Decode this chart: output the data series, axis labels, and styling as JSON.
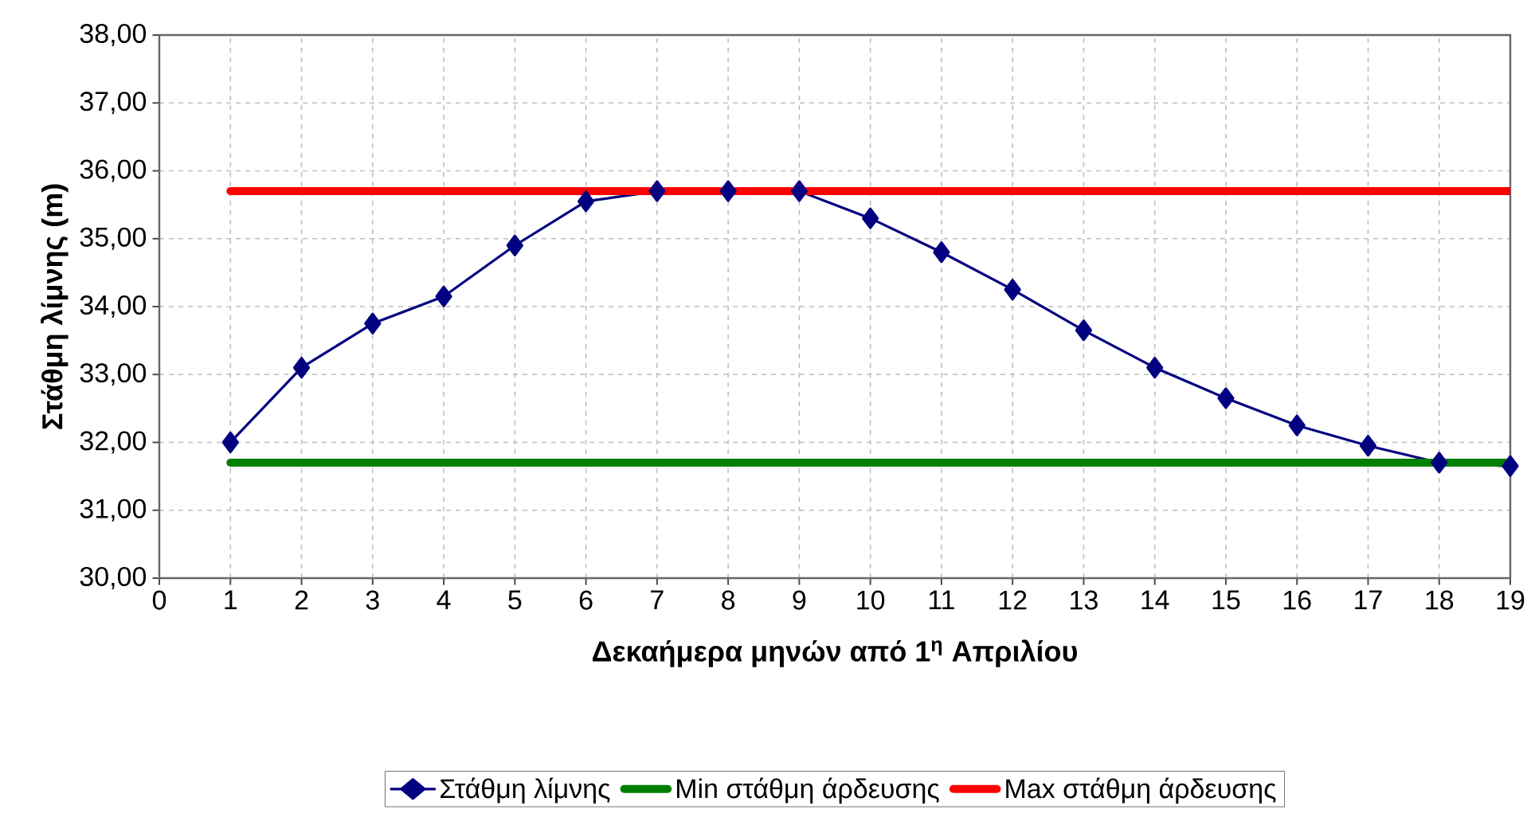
{
  "chart_data": {
    "type": "line",
    "xlabel": "Δεκαήμερα μηνών από 1$^{η}$ Απριλίου",
    "ylabel": "Στάθμη λίμνης (m)",
    "xlim": [
      0,
      19
    ],
    "xticks": [
      0,
      1,
      2,
      3,
      4,
      5,
      6,
      7,
      8,
      9,
      10,
      11,
      12,
      13,
      14,
      15,
      16,
      17,
      18,
      19
    ],
    "ylim": [
      30,
      38
    ],
    "yticks": [
      {
        "value": 30,
        "label": "30,00"
      },
      {
        "value": 31,
        "label": "31,00"
      },
      {
        "value": 32,
        "label": "32,00"
      },
      {
        "value": 33,
        "label": "33,00"
      },
      {
        "value": 34,
        "label": "34,00"
      },
      {
        "value": 35,
        "label": "35,00"
      },
      {
        "value": 36,
        "label": "36,00"
      },
      {
        "value": 37,
        "label": "37,00"
      },
      {
        "value": 38,
        "label": "38,00"
      }
    ],
    "grid": true,
    "legend": "bottom",
    "series": [
      {
        "name": "Στάθμη λίμνης",
        "color": "#000080",
        "marker": "diamond",
        "x": [
          1,
          2,
          3,
          4,
          5,
          6,
          7,
          8,
          9,
          10,
          11,
          12,
          13,
          14,
          15,
          16,
          17,
          18,
          19
        ],
        "values": [
          32.0,
          33.1,
          33.75,
          34.15,
          34.9,
          35.55,
          35.7,
          35.7,
          35.7,
          35.3,
          34.8,
          34.25,
          33.65,
          33.1,
          32.65,
          32.25,
          31.95,
          31.7,
          31.65
        ]
      },
      {
        "name": "Min στάθμη άρδευσης",
        "color": "#008000",
        "marker": "none",
        "x": [
          1,
          19
        ],
        "values": [
          31.7,
          31.7
        ]
      },
      {
        "name": "Max στάθμη άρδευσης",
        "color": "#ff0000",
        "marker": "none",
        "x": [
          1,
          19
        ],
        "values": [
          35.7,
          35.7
        ]
      }
    ]
  }
}
